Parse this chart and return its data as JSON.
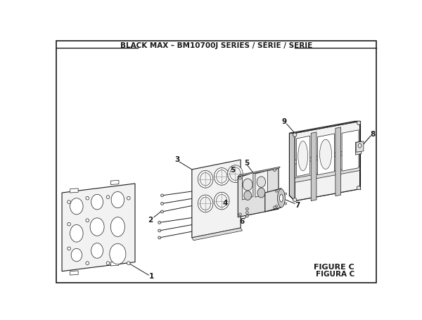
{
  "title": "BLACK MAX – BM10700J SERIES / SÉRIE / SERIE",
  "figure_label": "FIGURE C",
  "figura_label": "FIGURA C",
  "bg_color": "#ffffff",
  "lc": "#1a1a1a",
  "fill_light": "#f2f2f2",
  "fill_white": "#ffffff",
  "fill_mid": "#e0e0e0",
  "fill_dark": "#c8c8c8",
  "figsize": [
    6.0,
    4.55
  ],
  "dpi": 100
}
